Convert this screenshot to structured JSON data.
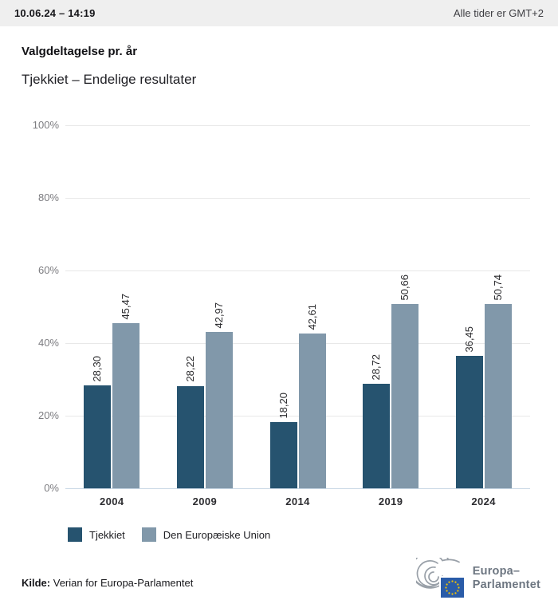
{
  "header": {
    "datetime": "10.06.24 – 14:19",
    "timezone_note": "Alle tider er GMT+2"
  },
  "title": "Valgdeltagelse pr. år",
  "subtitle": "Tjekkiet – Endelige resultater",
  "chart_data": {
    "type": "bar",
    "categories": [
      "2004",
      "2009",
      "2014",
      "2019",
      "2024"
    ],
    "series": [
      {
        "name": "Tjekkiet",
        "color": "#26536f",
        "values": [
          28.3,
          28.22,
          18.2,
          28.72,
          36.45
        ],
        "labels": [
          "28,30",
          "28,22",
          "18,20",
          "28,72",
          "36,45"
        ]
      },
      {
        "name": "Den Europæiske Union",
        "color": "#8198aa",
        "values": [
          45.47,
          42.97,
          42.61,
          50.66,
          50.74
        ],
        "labels": [
          "45,47",
          "42,97",
          "42,61",
          "50,66",
          "50,74"
        ]
      }
    ],
    "title": "Valgdeltagelse pr. år",
    "xlabel": "",
    "ylabel": "",
    "ylim": [
      0,
      100
    ],
    "yticks": [
      "0%",
      "20%",
      "40%",
      "60%",
      "80%",
      "100%"
    ],
    "grid": true,
    "value_labels_rotated": true,
    "legend_position": "bottom"
  },
  "footer": {
    "source_label": "Kilde:",
    "source_text": " Verian for Europa-Parlamentet",
    "logo_line1": "Europa–",
    "logo_line2": "Parlamentet"
  },
  "colors": {
    "series_tjekkiet": "#26536f",
    "series_eu": "#8198aa",
    "topbar_bg": "#efefef",
    "gridline": "#e8e8e8",
    "zero_axis_line": "#c7d6e4",
    "eu_flag_blue": "#2a5ca8",
    "eu_star_yellow": "#f5c400",
    "logo_gray": "#6d7681"
  }
}
